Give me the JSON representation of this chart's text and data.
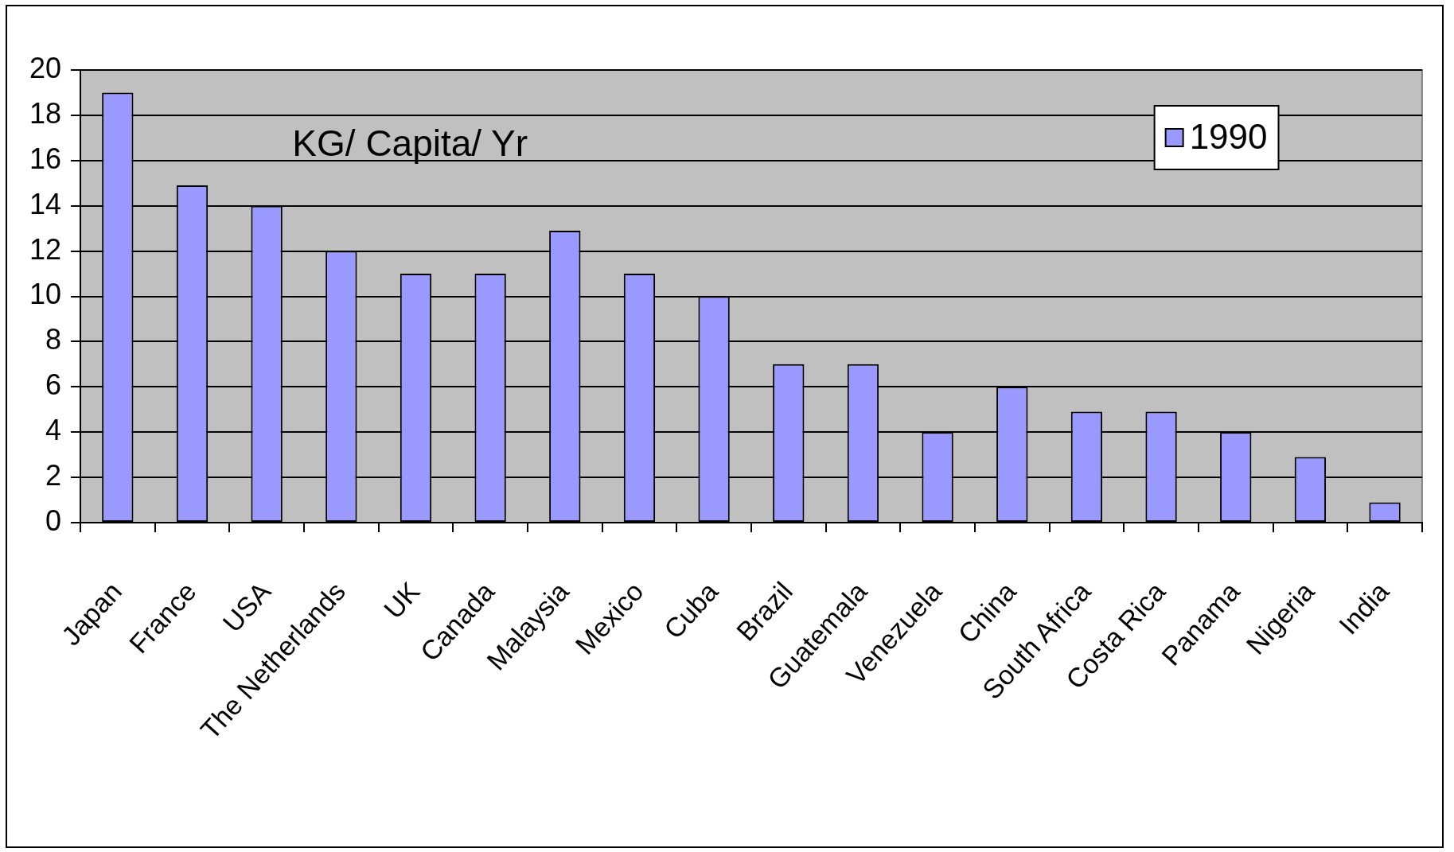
{
  "chart_data": {
    "type": "bar",
    "categories": [
      "Japan",
      "France",
      "USA",
      "The Netherlands",
      "UK",
      "Canada",
      "Malaysia",
      "Mexico",
      "Cuba",
      "Brazil",
      "Guatemala",
      "Venezuela",
      "China",
      "South Africa",
      "Costa Rica",
      "Panama",
      "Nigeria",
      "India"
    ],
    "series": [
      {
        "name": "1990",
        "color": "#9999ff",
        "values": [
          19,
          14.9,
          14,
          12,
          11,
          11,
          12.9,
          11,
          10,
          7,
          7,
          4,
          6,
          4.9,
          4.9,
          4,
          2.9,
          0.9
        ]
      }
    ],
    "ylim": [
      0,
      20
    ],
    "yticks": [
      0,
      2,
      4,
      6,
      8,
      10,
      12,
      14,
      16,
      18,
      20
    ],
    "annotations": [
      "KG/ Capita/ Yr"
    ],
    "grid": "y",
    "legend": "top right"
  }
}
